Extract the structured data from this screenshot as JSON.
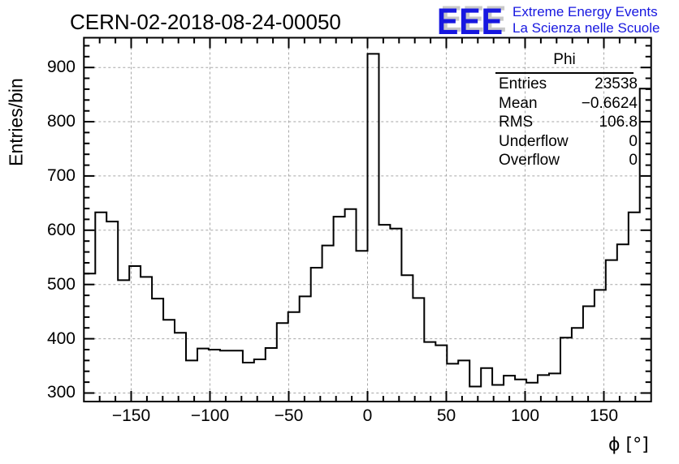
{
  "page": {
    "title": "CERN-02-2018-08-24-00050"
  },
  "logo": {
    "acronym": "EEE",
    "line1": "Extreme Energy Events",
    "line2": "La Scienza nelle Scuole",
    "color": "#1717e0"
  },
  "stats": {
    "title": "Phi",
    "rows": [
      {
        "label": "Entries",
        "value": "23538"
      },
      {
        "label": "Mean",
        "value": "−0.6624"
      },
      {
        "label": "RMS",
        "value": "106.8"
      },
      {
        "label": "Underflow",
        "value": "0"
      },
      {
        "label": "Overflow",
        "value": "0"
      }
    ]
  },
  "chart_data": {
    "type": "bar",
    "style": "step-histogram",
    "title": "CERN-02-2018-08-24-00050",
    "xlabel": "ϕ [°]",
    "ylabel": "Entries/bin",
    "xlim": [
      -180,
      180
    ],
    "ylim": [
      284.3,
      954.8
    ],
    "bins": 50,
    "bin_width": 7.2,
    "values": [
      520,
      633,
      616,
      508,
      534,
      514,
      474,
      435,
      411,
      360,
      382,
      380,
      378,
      378,
      356,
      362,
      383,
      429,
      449,
      478,
      531,
      572,
      625,
      639,
      562,
      925,
      610,
      603,
      517,
      475,
      394,
      388,
      354,
      360,
      312,
      346,
      315,
      332,
      325,
      319,
      333,
      336,
      402,
      420,
      460,
      490,
      545,
      574,
      633,
      861
    ],
    "x_ticks": [
      -150,
      -100,
      -50,
      0,
      50,
      100,
      150
    ],
    "x_tick_labels": [
      "−150",
      "−100",
      "−50",
      "0",
      "50",
      "100",
      "150"
    ],
    "y_ticks": [
      300,
      400,
      500,
      600,
      700,
      800,
      900
    ],
    "y_tick_labels": [
      "300",
      "400",
      "500",
      "600",
      "700",
      "800",
      "900"
    ],
    "minor_x_tick_step": 10,
    "minor_y_tick_step": 20,
    "grid": true,
    "grid_style": "dashed",
    "grid_color": "#a6a6a6",
    "line_color": "#000000",
    "legend": null
  }
}
